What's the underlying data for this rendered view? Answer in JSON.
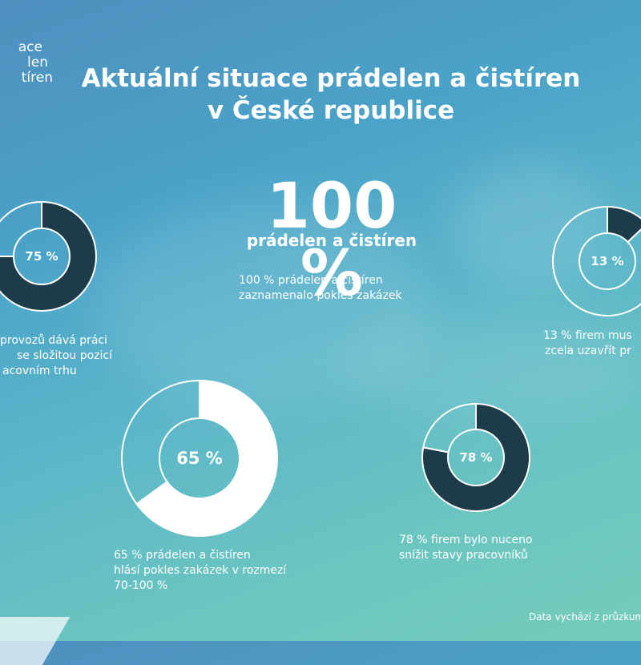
{
  "header": {
    "logo_lines": [
      "ace",
      "len",
      "tíren"
    ],
    "title_lines": [
      "Aktuální situace prádelen a čistíren",
      "v České republice"
    ]
  },
  "highlight": {
    "value": "100 %",
    "subtitle": "prádelen a čistíren",
    "description_lines": [
      "100 % prádelen a čistíren",
      "zaznamenalo pokles zakázek"
    ]
  },
  "colors": {
    "dark": "#1d3b48",
    "light": "#ffffff",
    "ring_stroke": "#ffffff"
  },
  "chart_data": [
    {
      "type": "pie",
      "label": "75 %",
      "values": [
        75,
        25
      ],
      "description_lines": [
        "provozů dává práci",
        "se složitou pozicí",
        "acovním trhu"
      ]
    },
    {
      "type": "pie",
      "label": "13 %",
      "values": [
        13,
        87
      ],
      "description_lines": [
        "13 % firem mus",
        "zcela uzavřít pr"
      ]
    },
    {
      "type": "pie",
      "label": "65 %",
      "values": [
        65,
        35
      ],
      "description_lines": [
        "65 % prádelen a čistíren",
        "hlásí pokles zakázek v rozmezí",
        "70-100 %"
      ]
    },
    {
      "type": "pie",
      "label": "78 %",
      "values": [
        78,
        22
      ],
      "description_lines": [
        "78 % firem bylo nuceno",
        "snížit stavy pracovníků"
      ]
    }
  ],
  "footer": {
    "text": "Data vychází z průzkum"
  }
}
